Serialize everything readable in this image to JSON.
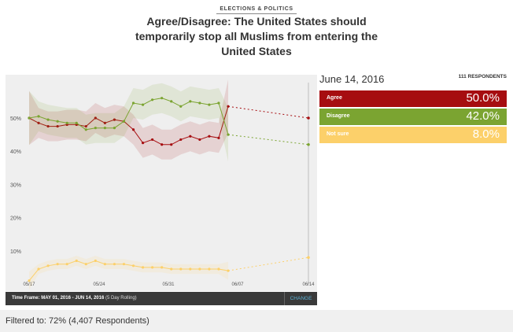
{
  "header": {
    "tag": "ELECTIONS & POLITICS",
    "title": "Agree/Disagree: The United States should temporarily stop all Muslims from entering the United States"
  },
  "panel": {
    "date": "June 14, 2016",
    "respondents": "111 RESPONDENTS",
    "rows": [
      {
        "label": "Agree",
        "value": "50.0%",
        "color": "#a60d10"
      },
      {
        "label": "Disagree",
        "value": "42.0%",
        "color": "#7ba431"
      },
      {
        "label": "Not sure",
        "value": "8.0%",
        "color": "#fcd06a"
      }
    ]
  },
  "footer": {
    "time_frame": "Time Frame: MAY 01, 2016 - JUN 14, 2016",
    "rolling": "(5 Day Rolling)",
    "change": "CHANGE"
  },
  "filter": {
    "text": "Filtered to: 72% (4,407 Respondents)"
  },
  "chart_data": {
    "type": "line",
    "x_tick_labels": [
      "05/17",
      "05/24",
      "05/31",
      "06/07",
      "06/14"
    ],
    "y_tick_labels": [
      "10%",
      "20%",
      "30%",
      "40%",
      "50%"
    ],
    "ylim": [
      0,
      60
    ],
    "series": [
      {
        "name": "Agree",
        "color": "#a60d10",
        "values": [
          50,
          48.5,
          47.5,
          47.5,
          48,
          48,
          47.5,
          50,
          48.5,
          49.5,
          49,
          46.5,
          42.5,
          43.5,
          42,
          42,
          43.5,
          44.5,
          43.5,
          44.5,
          44,
          53.5
        ],
        "tail": [
          53.5,
          50
        ]
      },
      {
        "name": "Disagree",
        "color": "#7ba431",
        "values": [
          50,
          50.5,
          49.5,
          49,
          48.5,
          48.5,
          46.5,
          47,
          47,
          47,
          49,
          54.5,
          54,
          55.5,
          56,
          55,
          53.5,
          55,
          54.5,
          54,
          54.5,
          45
        ],
        "tail": [
          45,
          42
        ]
      },
      {
        "name": "Not sure",
        "color": "#fcd06a",
        "values": [
          1,
          4.5,
          5.5,
          6,
          6,
          7,
          6,
          7,
          6,
          6,
          6,
          5.5,
          5,
          5,
          5,
          4.5,
          4.5,
          4.5,
          4.5,
          4.5,
          4.5,
          4
        ],
        "tail": [
          4,
          8
        ]
      }
    ],
    "grid": false
  }
}
